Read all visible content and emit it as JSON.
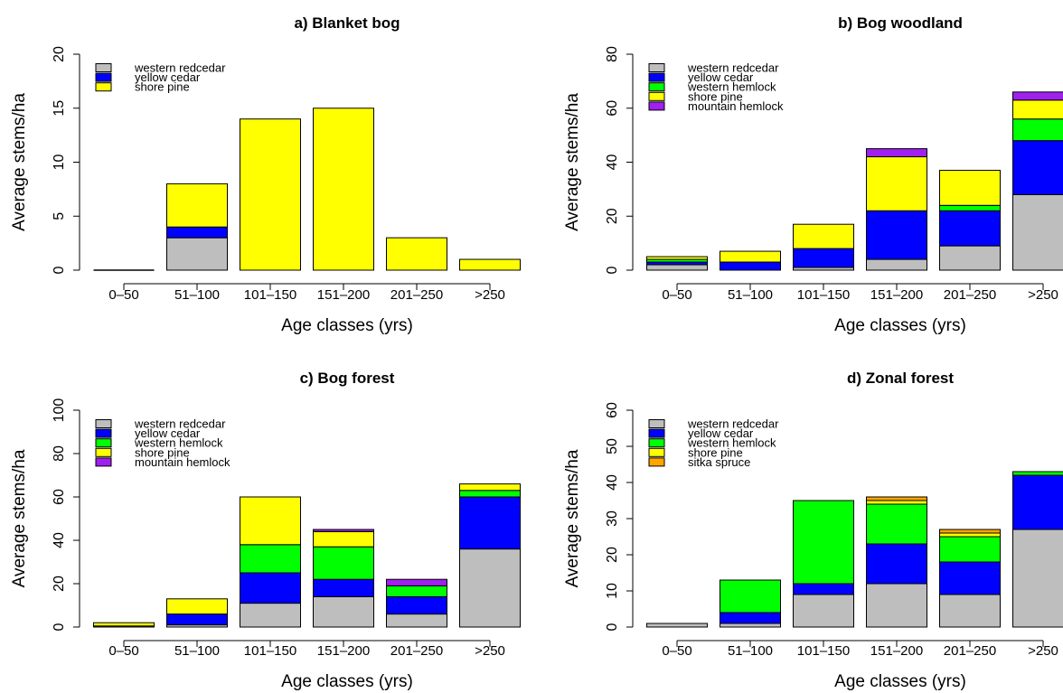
{
  "chart_data": [
    {
      "type": "bar",
      "stacked": true,
      "title": "a) Blanket bog",
      "xlabel": "Age classes (yrs)",
      "ylabel": "Average stems/ha",
      "ylim": [
        0,
        20
      ],
      "yticks": [
        0,
        5,
        10,
        15,
        20
      ],
      "categories": [
        "0–50",
        "51–100",
        "101–150",
        "151–200",
        "201–250",
        ">250"
      ],
      "legend_position": "top-left",
      "series": [
        {
          "name": "western redcedar",
          "color": "#bebebe",
          "values": [
            0,
            3,
            0,
            0,
            0,
            0
          ]
        },
        {
          "name": "yellow cedar",
          "color": "#0000ff",
          "values": [
            0,
            1,
            0,
            0,
            0,
            0
          ]
        },
        {
          "name": "shore pine",
          "color": "#ffff00",
          "values": [
            0,
            4,
            14,
            15,
            3,
            1
          ]
        }
      ]
    },
    {
      "type": "bar",
      "stacked": true,
      "title": "b) Bog woodland",
      "xlabel": "Age classes (yrs)",
      "ylabel": "Average stems/ha",
      "ylim": [
        0,
        80
      ],
      "yticks": [
        0,
        20,
        40,
        60,
        80
      ],
      "categories": [
        "0–50",
        "51–100",
        "101–150",
        "151–200",
        "201–250",
        ">250"
      ],
      "legend_position": "top-left",
      "series": [
        {
          "name": "western redcedar",
          "color": "#bebebe",
          "values": [
            2,
            0,
            1,
            4,
            9,
            28
          ]
        },
        {
          "name": "yellow cedar",
          "color": "#0000ff",
          "values": [
            1,
            3,
            7,
            18,
            13,
            20
          ]
        },
        {
          "name": "western hemlock",
          "color": "#00ff00",
          "values": [
            1,
            0,
            0,
            0,
            2,
            8
          ]
        },
        {
          "name": "shore pine",
          "color": "#ffff00",
          "values": [
            1,
            4,
            9,
            20,
            13,
            7
          ]
        },
        {
          "name": "mountain hemlock",
          "color": "#a020f0",
          "values": [
            0,
            0,
            0,
            3,
            0,
            3
          ]
        }
      ]
    },
    {
      "type": "bar",
      "stacked": true,
      "title": "c) Bog forest",
      "xlabel": "Age classes (yrs)",
      "ylabel": "Average stems/ha",
      "ylim": [
        0,
        100
      ],
      "yticks": [
        0,
        20,
        40,
        60,
        80,
        100
      ],
      "categories": [
        "0–50",
        "51–100",
        "101–150",
        "151–200",
        "201–250",
        ">250"
      ],
      "legend_position": "top-left",
      "series": [
        {
          "name": "western redcedar",
          "color": "#bebebe",
          "values": [
            0.5,
            1,
            11,
            14,
            6,
            36
          ]
        },
        {
          "name": "yellow cedar",
          "color": "#0000ff",
          "values": [
            0,
            5,
            14,
            8,
            8,
            24
          ]
        },
        {
          "name": "western hemlock",
          "color": "#00ff00",
          "values": [
            0,
            0,
            13,
            15,
            5,
            3
          ]
        },
        {
          "name": "shore pine",
          "color": "#ffff00",
          "values": [
            1.5,
            7,
            22,
            7,
            0,
            3
          ]
        },
        {
          "name": "mountain hemlock",
          "color": "#a020f0",
          "values": [
            0,
            0,
            0,
            1,
            3,
            0
          ]
        }
      ]
    },
    {
      "type": "bar",
      "stacked": true,
      "title": "d) Zonal forest",
      "xlabel": "Age classes (yrs)",
      "ylabel": "Average stems/ha",
      "ylim": [
        0,
        60
      ],
      "yticks": [
        0,
        10,
        20,
        30,
        40,
        50,
        60
      ],
      "categories": [
        "0–50",
        "51–100",
        "101–150",
        "151–200",
        "201–250",
        ">250"
      ],
      "legend_position": "top-left",
      "series": [
        {
          "name": "western redcedar",
          "color": "#bebebe",
          "values": [
            1,
            1,
            9,
            12,
            9,
            27
          ]
        },
        {
          "name": "yellow cedar",
          "color": "#0000ff",
          "values": [
            0,
            3,
            3,
            11,
            9,
            15
          ]
        },
        {
          "name": "western hemlock",
          "color": "#00ff00",
          "values": [
            0,
            9,
            23,
            11,
            7,
            1
          ]
        },
        {
          "name": "shore pine",
          "color": "#ffff00",
          "values": [
            0,
            0,
            0,
            1,
            1,
            0
          ]
        },
        {
          "name": "sitka spruce",
          "color": "#ffa500",
          "values": [
            0,
            0,
            0,
            1,
            1,
            0
          ]
        }
      ]
    }
  ]
}
